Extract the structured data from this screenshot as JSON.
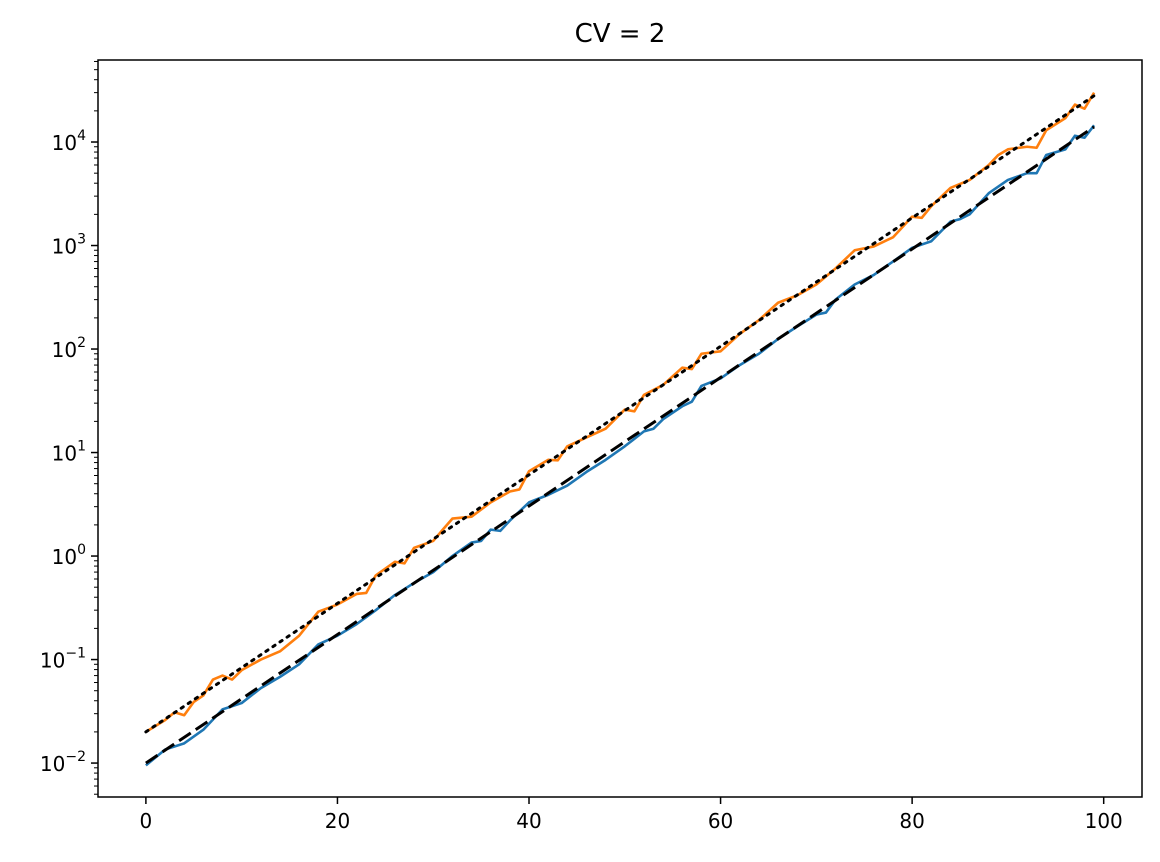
{
  "chart_data": {
    "type": "line",
    "title": "CV = 2",
    "xlabel": "",
    "ylabel": "",
    "xlim": [
      -5,
      104
    ],
    "ylim": [
      0.0047,
      62000
    ],
    "yscale": "log",
    "grid": false,
    "x_ticks": [
      0,
      20,
      40,
      60,
      80,
      100
    ],
    "x_tick_labels": [
      "0",
      "20",
      "40",
      "60",
      "80",
      "100"
    ],
    "y_ticks": [
      0.01,
      0.1,
      1,
      10,
      100,
      1000,
      10000
    ],
    "y_tick_labels": [
      {
        "base": "10",
        "exp": "−2"
      },
      {
        "base": "10",
        "exp": "−1"
      },
      {
        "base": "10",
        "exp": "0"
      },
      {
        "base": "10",
        "exp": "1"
      },
      {
        "base": "10",
        "exp": "2"
      },
      {
        "base": "10",
        "exp": "3"
      },
      {
        "base": "10",
        "exp": "4"
      }
    ],
    "series": [
      {
        "style": "solid",
        "color": "#1f77b4",
        "points": [
          [
            0,
            0.0095
          ],
          [
            2,
            0.0135
          ],
          [
            4,
            0.0155
          ],
          [
            6,
            0.021
          ],
          [
            8,
            0.033
          ],
          [
            10,
            0.038
          ],
          [
            12,
            0.053
          ],
          [
            14,
            0.068
          ],
          [
            16,
            0.09
          ],
          [
            18,
            0.14
          ],
          [
            20,
            0.17
          ],
          [
            22,
            0.22
          ],
          [
            24,
            0.3
          ],
          [
            26,
            0.42
          ],
          [
            28,
            0.55
          ],
          [
            30,
            0.7
          ],
          [
            32,
            1.0
          ],
          [
            34,
            1.35
          ],
          [
            35,
            1.4
          ],
          [
            36,
            1.8
          ],
          [
            37,
            1.75
          ],
          [
            38,
            2.2
          ],
          [
            40,
            3.3
          ],
          [
            42,
            3.9
          ],
          [
            44,
            4.8
          ],
          [
            46,
            6.5
          ],
          [
            48,
            8.5
          ],
          [
            50,
            11.5
          ],
          [
            52,
            16
          ],
          [
            53,
            17
          ],
          [
            54,
            21
          ],
          [
            56,
            28
          ],
          [
            57,
            31
          ],
          [
            58,
            44
          ],
          [
            60,
            52
          ],
          [
            62,
            70
          ],
          [
            64,
            90
          ],
          [
            66,
            125
          ],
          [
            68,
            165
          ],
          [
            70,
            215
          ],
          [
            71,
            225
          ],
          [
            72,
            300
          ],
          [
            74,
            420
          ],
          [
            76,
            520
          ],
          [
            78,
            700
          ],
          [
            80,
            950
          ],
          [
            82,
            1100
          ],
          [
            84,
            1700
          ],
          [
            85,
            1800
          ],
          [
            86,
            2000
          ],
          [
            88,
            3200
          ],
          [
            90,
            4300
          ],
          [
            92,
            5000
          ],
          [
            93,
            5000
          ],
          [
            94,
            7500
          ],
          [
            96,
            8500
          ],
          [
            97,
            11500
          ],
          [
            98,
            11000
          ],
          [
            99,
            14500
          ]
        ]
      },
      {
        "style": "solid",
        "color": "#ff7f0e",
        "points": [
          [
            0,
            0.02
          ],
          [
            2,
            0.026
          ],
          [
            3,
            0.031
          ],
          [
            4,
            0.029
          ],
          [
            5,
            0.039
          ],
          [
            6,
            0.045
          ],
          [
            7,
            0.064
          ],
          [
            8,
            0.07
          ],
          [
            9,
            0.064
          ],
          [
            10,
            0.079
          ],
          [
            12,
            0.1
          ],
          [
            14,
            0.12
          ],
          [
            16,
            0.17
          ],
          [
            18,
            0.29
          ],
          [
            20,
            0.34
          ],
          [
            22,
            0.43
          ],
          [
            23,
            0.44
          ],
          [
            24,
            0.65
          ],
          [
            26,
            0.88
          ],
          [
            27,
            0.85
          ],
          [
            28,
            1.2
          ],
          [
            30,
            1.4
          ],
          [
            31,
            1.8
          ],
          [
            32,
            2.3
          ],
          [
            34,
            2.4
          ],
          [
            36,
            3.3
          ],
          [
            38,
            4.2
          ],
          [
            39,
            4.4
          ],
          [
            40,
            6.6
          ],
          [
            42,
            8.5
          ],
          [
            43,
            8.4
          ],
          [
            44,
            11.5
          ],
          [
            46,
            14
          ],
          [
            48,
            17
          ],
          [
            50,
            26
          ],
          [
            51,
            25
          ],
          [
            52,
            36
          ],
          [
            54,
            45
          ],
          [
            56,
            66
          ],
          [
            57,
            64
          ],
          [
            58,
            90
          ],
          [
            60,
            95
          ],
          [
            62,
            140
          ],
          [
            64,
            190
          ],
          [
            66,
            280
          ],
          [
            68,
            330
          ],
          [
            70,
            420
          ],
          [
            72,
            600
          ],
          [
            74,
            900
          ],
          [
            76,
            980
          ],
          [
            78,
            1200
          ],
          [
            80,
            1900
          ],
          [
            81,
            1850
          ],
          [
            82,
            2400
          ],
          [
            84,
            3600
          ],
          [
            86,
            4300
          ],
          [
            88,
            6000
          ],
          [
            89,
            7500
          ],
          [
            90,
            8500
          ],
          [
            92,
            9000
          ],
          [
            93,
            8800
          ],
          [
            94,
            13000
          ],
          [
            96,
            17000
          ],
          [
            97,
            23000
          ],
          [
            98,
            21000
          ],
          [
            99,
            30000
          ]
        ]
      },
      {
        "style": "dashed",
        "color": "#000000",
        "points": [
          [
            0,
            0.01
          ],
          [
            99,
            14000
          ]
        ]
      },
      {
        "style": "dotted",
        "color": "#000000",
        "points": [
          [
            0,
            0.02
          ],
          [
            99,
            28000
          ]
        ]
      }
    ]
  }
}
